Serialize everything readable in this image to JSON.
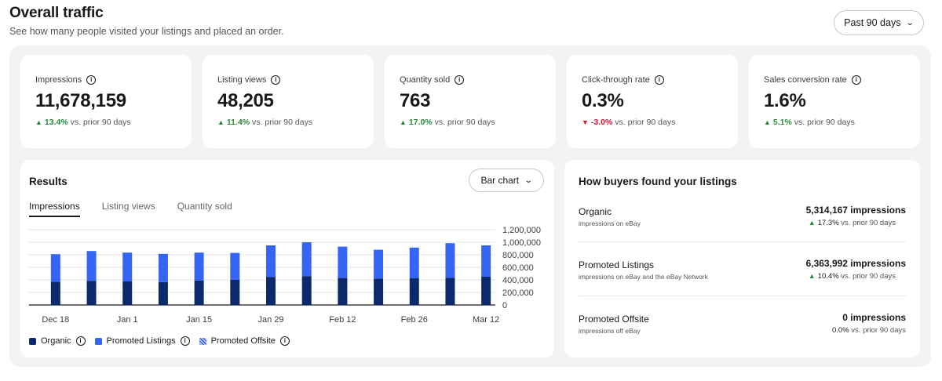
{
  "header": {
    "title": "Overall traffic",
    "subtitle": "See how many people visited your listings and placed an order.",
    "period_label": "Past 90 days"
  },
  "metrics": [
    {
      "label": "Impressions",
      "value": "11,678,159",
      "change": "13.4%",
      "direction": "up",
      "comparison": "vs. prior 90 days"
    },
    {
      "label": "Listing views",
      "value": "48,205",
      "change": "11.4%",
      "direction": "up",
      "comparison": "vs. prior 90 days"
    },
    {
      "label": "Quantity sold",
      "value": "763",
      "change": "17.0%",
      "direction": "up",
      "comparison": "vs. prior 90 days"
    },
    {
      "label": "Click-through rate",
      "value": "0.3%",
      "change": "-3.0%",
      "direction": "down",
      "comparison": "vs. prior 90 days"
    },
    {
      "label": "Sales conversion rate",
      "value": "1.6%",
      "change": "5.1%",
      "direction": "up",
      "comparison": "vs. prior 90 days"
    }
  ],
  "results": {
    "title": "Results",
    "chart_type_label": "Bar chart",
    "tabs": [
      "Impressions",
      "Listing views",
      "Quantity sold"
    ],
    "active_tab": 0
  },
  "chart_data": {
    "type": "bar",
    "stacked": true,
    "categories": [
      "Dec 18",
      "Dec 25",
      "Jan 1",
      "Jan 8",
      "Jan 15",
      "Jan 22",
      "Jan 29",
      "Feb 5",
      "Feb 12",
      "Feb 19",
      "Feb 26",
      "Mar 5",
      "Mar 12"
    ],
    "x_tick_labels": [
      "Dec 18",
      "Jan 1",
      "Jan 15",
      "Jan 29",
      "Feb 12",
      "Feb 26",
      "Mar 12"
    ],
    "series": [
      {
        "name": "Organic",
        "color": "#0c2a6b",
        "values": [
          370000,
          385000,
          375000,
          365000,
          390000,
          400000,
          445000,
          460000,
          430000,
          420000,
          425000,
          435000,
          450000
        ]
      },
      {
        "name": "Promoted Listings",
        "color": "#3665f3",
        "values": [
          440000,
          475000,
          460000,
          450000,
          445000,
          430000,
          505000,
          540000,
          500000,
          460000,
          490000,
          550000,
          500000
        ]
      },
      {
        "name": "Promoted Offsite",
        "color": "#8fa8f7",
        "values": [
          0,
          0,
          0,
          0,
          0,
          0,
          0,
          0,
          0,
          0,
          0,
          0,
          0
        ]
      }
    ],
    "ylim": [
      0,
      1200000
    ],
    "y_ticks": [
      "1,200,000",
      "1,000,000",
      "800,000",
      "600,000",
      "400,000",
      "200,000",
      "0"
    ],
    "y_axis_position": "right",
    "grid": true,
    "legend_position": "bottom-left"
  },
  "buyers": {
    "title": "How buyers found your listings",
    "sources": [
      {
        "name": "Organic",
        "description": "impressions on eBay",
        "value": "5,314,167 impressions",
        "change": "17.3%",
        "direction": "up",
        "comparison": "vs. prior 90 days"
      },
      {
        "name": "Promoted Listings",
        "description": "impressions on eBay and the eBay Network",
        "value": "6,363,992 impressions",
        "change": "10.4%",
        "direction": "up",
        "comparison": "vs. prior 90 days"
      },
      {
        "name": "Promoted Offsite",
        "description": "impressions off eBay",
        "value": "0 impressions",
        "change": "0.0%",
        "direction": "flat",
        "comparison": "vs. prior 90 days"
      }
    ]
  },
  "icons": {
    "info": "info-icon",
    "chevron": "chevron-down-icon",
    "up_arrow": "triangle-up-icon",
    "down_arrow": "triangle-down-icon"
  }
}
